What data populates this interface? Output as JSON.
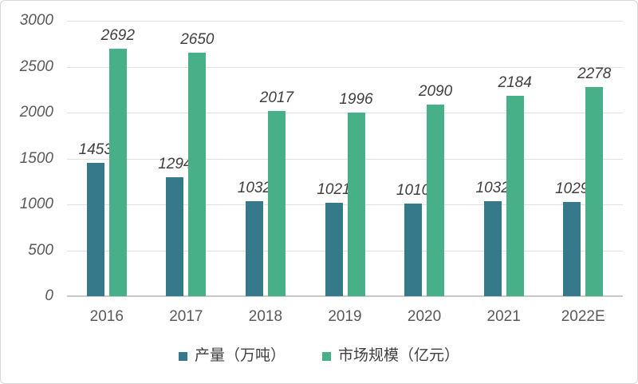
{
  "chart_data": {
    "type": "bar",
    "title": "",
    "xlabel": "",
    "ylabel": "",
    "categories": [
      "2016",
      "2017",
      "2018",
      "2019",
      "2020",
      "2021",
      "2022E"
    ],
    "series": [
      {
        "name": "产量（万吨）",
        "color": "#35798a",
        "values": [
          1453,
          1294,
          1032,
          1021,
          1010,
          1032,
          1029
        ]
      },
      {
        "name": "市场规模（亿元）",
        "color": "#47b089",
        "values": [
          2692,
          2650,
          2017,
          1996,
          2090,
          2184,
          2278
        ]
      }
    ],
    "ylim": [
      0,
      3000
    ],
    "yticks": [
      0,
      500,
      1000,
      1500,
      2000,
      2500,
      3000
    ],
    "grid": true,
    "data_labels": true,
    "legend_position": "bottom"
  },
  "colors": {
    "background": "#ffffff",
    "frame_border": "#d6d6d6",
    "gridline": "#e0e0e0",
    "baseline": "#c9c9c9",
    "axis_label": "#595959",
    "data_label": "#3f3f3f",
    "legend_label": "#3f3f3f"
  }
}
